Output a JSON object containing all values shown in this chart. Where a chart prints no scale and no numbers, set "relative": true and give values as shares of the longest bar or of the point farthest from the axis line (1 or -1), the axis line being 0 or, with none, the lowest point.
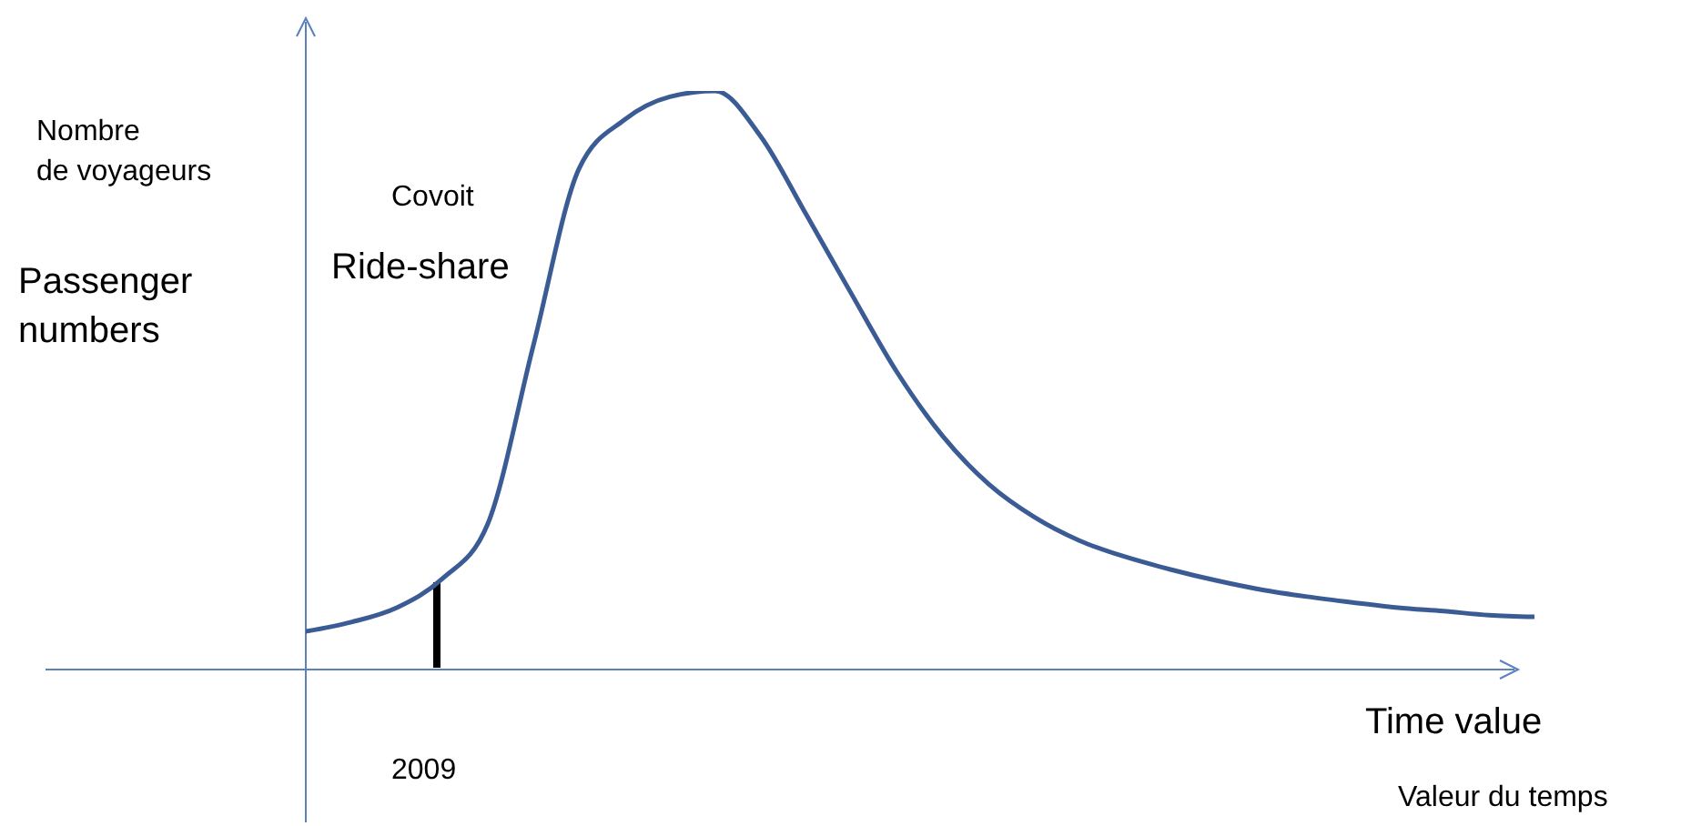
{
  "chart_data": {
    "type": "line",
    "relative": true,
    "xlabel": "Time value",
    "ylabel": "Passenger numbers",
    "annotations": [
      "Nombre\nde voyageurs",
      "Covoit",
      "Ride-share",
      "2009",
      "Valeur du temps"
    ],
    "categories": [
      null,
      null,
      null,
      null,
      null,
      null,
      null,
      null,
      null,
      null,
      null,
      null,
      null,
      null,
      null,
      null,
      null,
      null,
      null,
      null,
      null,
      null,
      null,
      null,
      null,
      null,
      null,
      null
    ],
    "series": [
      {
        "color": "#3b5b94",
        "values": [
          0.066,
          0.082,
          0.107,
          0.157,
          0.252,
          0.56,
          0.865,
          0.95,
          0.99,
          1.0,
          0.921,
          0.786,
          0.648,
          0.513,
          0.403,
          0.321,
          0.264,
          0.223,
          0.195,
          0.173,
          0.154,
          0.138,
          0.126,
          0.116,
          0.107,
          0.101,
          0.094,
          0.091
        ]
      }
    ],
    "marker": "none",
    "line_style": "solid"
  }
}
